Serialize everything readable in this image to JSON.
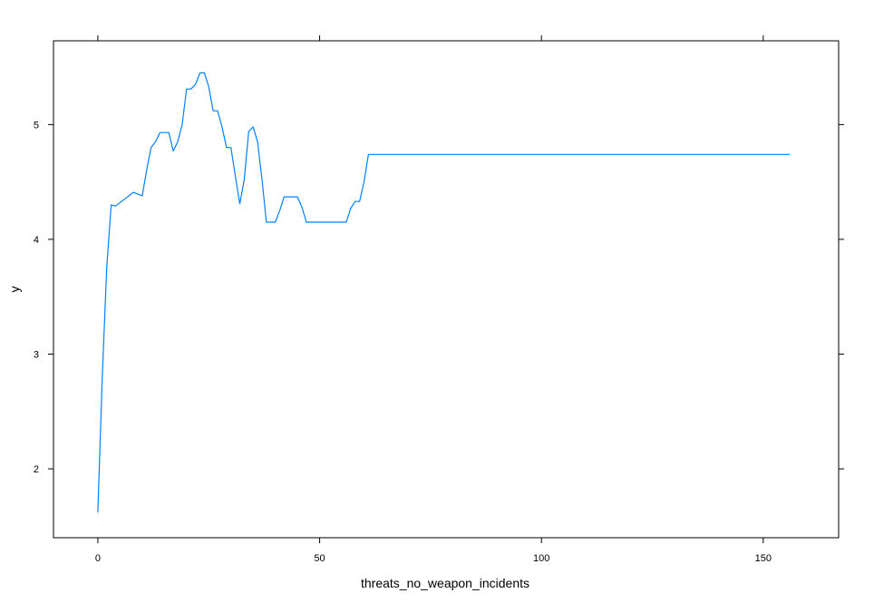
{
  "chart_data": {
    "type": "line",
    "title": "",
    "xlabel": "threats_no_weapon_incidents",
    "ylabel": "y",
    "xlim": [
      -10,
      167
    ],
    "ylim": [
      1.4,
      5.73
    ],
    "x_ticks": [
      0,
      50,
      100,
      150
    ],
    "y_ticks": [
      2,
      3,
      4,
      5
    ],
    "grid": false,
    "line_color": "#0080ff",
    "series": [
      {
        "x": [
          0,
          1,
          2,
          3,
          4,
          6,
          8,
          10,
          11,
          12,
          13,
          14,
          15,
          16,
          17,
          18,
          19,
          20,
          21,
          22,
          23,
          24,
          25,
          26,
          27,
          28,
          29,
          30,
          31,
          32,
          33,
          34,
          35,
          36,
          37,
          38,
          39,
          40,
          41,
          42,
          43,
          44,
          45,
          46,
          47,
          48,
          49,
          50,
          55,
          56,
          57,
          58,
          59,
          60,
          61,
          62,
          156
        ],
        "y": [
          1.62,
          2.8,
          3.75,
          4.3,
          4.29,
          4.35,
          4.41,
          4.38,
          4.6,
          4.8,
          4.85,
          4.93,
          4.93,
          4.93,
          4.77,
          4.85,
          5.0,
          5.31,
          5.31,
          5.35,
          5.45,
          5.45,
          5.33,
          5.12,
          5.12,
          4.98,
          4.8,
          4.8,
          4.55,
          4.31,
          4.52,
          4.94,
          4.98,
          4.85,
          4.52,
          4.15,
          4.15,
          4.15,
          4.25,
          4.37,
          4.37,
          4.37,
          4.37,
          4.28,
          4.15,
          4.15,
          4.15,
          4.15,
          4.15,
          4.15,
          4.27,
          4.33,
          4.33,
          4.5,
          4.74,
          4.74,
          4.74
        ]
      }
    ]
  }
}
